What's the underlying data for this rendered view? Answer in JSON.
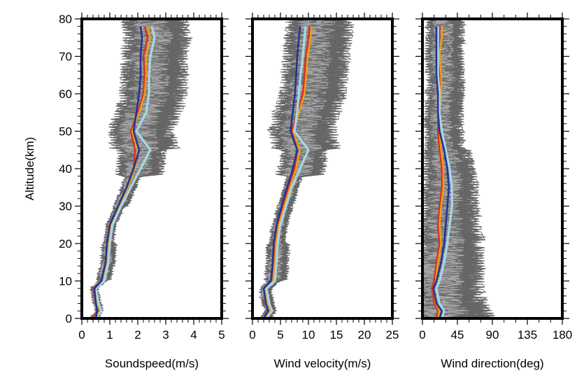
{
  "chart_data": [
    {
      "type": "line",
      "xlabel": "Soundspeed(m/s)",
      "ylabel": "Altitude(km)",
      "xlim": [
        0,
        5
      ],
      "ylim": [
        0,
        80
      ],
      "xticks": [
        "0",
        "1",
        "2",
        "3",
        "4",
        "5"
      ],
      "yticks": [
        "0",
        "10",
        "20",
        "30",
        "40",
        "50",
        "60",
        "70",
        "80"
      ],
      "grid": false,
      "legend": "none",
      "colors": {
        "ensemble_dark": "#666666",
        "ensemble_light": "#a9a9a9",
        "red": "#d7301f",
        "orange": "#f39c12",
        "light_blue": "#a6d8e6",
        "dark_blue": "#253494"
      },
      "series": [
        {
          "color": "#d7301f",
          "y": [
            0,
            2,
            4,
            8,
            10,
            15,
            20,
            25,
            30,
            35,
            40,
            45,
            50,
            55,
            60,
            65,
            70,
            75,
            78
          ],
          "x": [
            0.4,
            0.6,
            0.5,
            0.4,
            0.7,
            0.85,
            0.9,
            1.0,
            1.3,
            1.6,
            1.85,
            1.9,
            1.75,
            2.0,
            2.2,
            2.25,
            2.2,
            2.35,
            2.25
          ]
        },
        {
          "color": "#f39c12",
          "y": [
            0,
            2,
            4,
            8,
            10,
            15,
            20,
            25,
            30,
            35,
            40,
            45,
            50,
            55,
            60,
            65,
            70,
            75,
            78
          ],
          "x": [
            0.45,
            0.65,
            0.55,
            0.45,
            0.75,
            0.9,
            0.95,
            1.05,
            1.35,
            1.65,
            1.9,
            2.0,
            1.8,
            2.05,
            2.25,
            2.3,
            2.3,
            2.45,
            2.35
          ]
        },
        {
          "color": "#a6d8e6",
          "y": [
            0,
            2,
            4,
            8,
            10,
            15,
            20,
            25,
            30,
            35,
            40,
            45,
            50,
            55,
            60,
            65,
            70,
            75,
            78
          ],
          "x": [
            0.5,
            0.7,
            0.6,
            0.5,
            0.8,
            0.95,
            1.0,
            1.1,
            1.4,
            1.75,
            2.1,
            2.45,
            1.95,
            2.3,
            2.4,
            2.4,
            2.45,
            2.6,
            2.5
          ]
        },
        {
          "color": "#253494",
          "y": [
            0,
            2,
            4,
            8,
            10,
            15,
            20,
            25,
            30,
            35,
            40,
            45,
            50,
            55,
            60,
            65,
            70,
            75,
            78
          ],
          "x": [
            0.5,
            0.55,
            0.5,
            0.45,
            0.7,
            0.85,
            0.9,
            1.0,
            1.3,
            1.6,
            1.85,
            2.05,
            1.85,
            1.95,
            2.05,
            2.1,
            2.1,
            2.15,
            2.1
          ]
        }
      ]
    },
    {
      "type": "line",
      "xlabel": "Wind velocity(m/s)",
      "ylabel": "",
      "xlim": [
        0,
        25
      ],
      "ylim": [
        0,
        80
      ],
      "xticks": [
        "0",
        "5",
        "10",
        "15",
        "20",
        "25"
      ],
      "grid": false,
      "legend": "none",
      "series": [
        {
          "color": "#d7301f",
          "y": [
            0,
            2,
            4,
            8,
            10,
            15,
            20,
            25,
            30,
            35,
            40,
            45,
            50,
            55,
            60,
            65,
            70,
            75,
            78
          ],
          "x": [
            2.0,
            3.0,
            2.5,
            2.0,
            3.5,
            3.8,
            4.0,
            4.5,
            5.5,
            6.5,
            7.5,
            8.0,
            7.0,
            8.0,
            9.0,
            9.3,
            9.5,
            10.0,
            10.2
          ]
        },
        {
          "color": "#f39c12",
          "y": [
            0,
            2,
            4,
            8,
            10,
            15,
            20,
            25,
            30,
            35,
            40,
            45,
            50,
            55,
            60,
            65,
            70,
            75,
            78
          ],
          "x": [
            2.2,
            3.2,
            2.7,
            2.2,
            3.7,
            4.0,
            4.2,
            4.7,
            5.7,
            6.7,
            7.8,
            8.5,
            7.3,
            8.3,
            9.3,
            9.6,
            9.9,
            10.4,
            10.6
          ]
        },
        {
          "color": "#a6d8e6",
          "y": [
            0,
            2,
            4,
            8,
            10,
            15,
            20,
            25,
            30,
            35,
            40,
            45,
            50,
            55,
            60,
            65,
            70,
            75,
            78
          ],
          "x": [
            2.5,
            3.5,
            3.0,
            2.5,
            4.0,
            4.3,
            4.5,
            5.0,
            6.0,
            7.0,
            8.5,
            10.0,
            7.5,
            8.0,
            8.3,
            8.6,
            9.0,
            9.3,
            9.5
          ]
        },
        {
          "color": "#253494",
          "y": [
            0,
            2,
            4,
            8,
            10,
            15,
            20,
            25,
            30,
            35,
            40,
            45,
            50,
            55,
            60,
            65,
            70,
            75,
            78
          ],
          "x": [
            2.0,
            2.8,
            2.4,
            2.0,
            3.3,
            3.6,
            3.8,
            4.3,
            5.2,
            6.2,
            7.2,
            8.0,
            6.8,
            7.2,
            7.6,
            7.8,
            8.0,
            8.3,
            8.5
          ]
        }
      ]
    },
    {
      "type": "line",
      "xlabel": "Wind direction(deg)",
      "ylabel": "",
      "xlim": [
        0,
        180
      ],
      "ylim": [
        0,
        80
      ],
      "xticks": [
        "0",
        "45",
        "90",
        "135",
        "180"
      ],
      "grid": false,
      "legend": "none",
      "series": [
        {
          "color": "#d7301f",
          "y": [
            0,
            2,
            4,
            8,
            10,
            15,
            20,
            25,
            30,
            35,
            40,
            45,
            50,
            55,
            60,
            65,
            70,
            75,
            78
          ],
          "x": [
            18,
            20,
            15,
            12,
            15,
            18,
            22,
            20,
            22,
            25,
            25,
            22,
            20,
            20,
            22,
            22,
            20,
            22,
            22
          ]
        },
        {
          "color": "#f39c12",
          "y": [
            0,
            2,
            4,
            8,
            10,
            15,
            20,
            25,
            30,
            35,
            40,
            45,
            50,
            55,
            60,
            65,
            70,
            75,
            78
          ],
          "x": [
            20,
            22,
            17,
            14,
            17,
            20,
            24,
            22,
            24,
            27,
            27,
            24,
            22,
            22,
            24,
            24,
            22,
            25,
            25
          ]
        },
        {
          "color": "#a6d8e6",
          "y": [
            0,
            2,
            4,
            8,
            10,
            15,
            20,
            25,
            30,
            35,
            40,
            45,
            50,
            55,
            60,
            65,
            70,
            75,
            78
          ],
          "x": [
            25,
            28,
            22,
            18,
            22,
            28,
            32,
            35,
            38,
            38,
            35,
            30,
            25,
            22,
            22,
            20,
            20,
            20,
            20
          ]
        },
        {
          "color": "#253494",
          "y": [
            0,
            2,
            4,
            8,
            10,
            15,
            20,
            25,
            30,
            35,
            40,
            45,
            50,
            55,
            60,
            65,
            70,
            75,
            78
          ],
          "x": [
            22,
            25,
            18,
            14,
            18,
            24,
            28,
            30,
            32,
            34,
            32,
            28,
            22,
            20,
            20,
            18,
            18,
            18,
            18
          ]
        }
      ]
    }
  ]
}
